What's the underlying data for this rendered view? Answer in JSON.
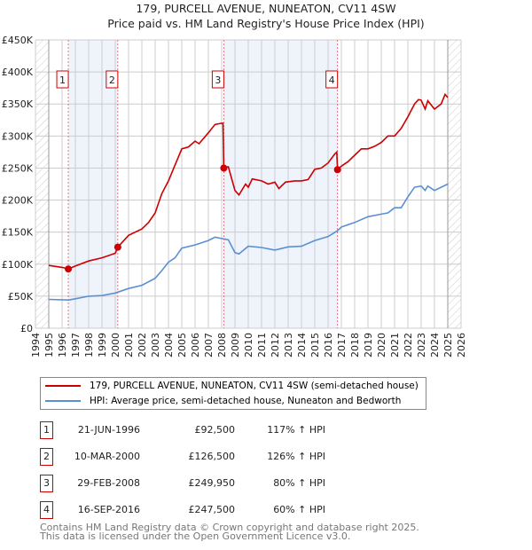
{
  "chart_data": {
    "type": "line",
    "title": "179, PURCELL AVENUE, NUNEATON, CV11 4SW",
    "subtitle": "Price paid vs. HM Land Registry's House Price Index (HPI)",
    "xlim": [
      1994,
      2026
    ],
    "ylim": [
      0,
      450000
    ],
    "x_ticks": [
      "1994",
      "1995",
      "1996",
      "1997",
      "1998",
      "1999",
      "2000",
      "2001",
      "2002",
      "2003",
      "2004",
      "2005",
      "2006",
      "2007",
      "2008",
      "2009",
      "2010",
      "2011",
      "2012",
      "2013",
      "2014",
      "2015",
      "2016",
      "2017",
      "2018",
      "2019",
      "2020",
      "2021",
      "2022",
      "2023",
      "2024",
      "2025",
      "2026"
    ],
    "y_ticks": [
      {
        "v": 0,
        "label": "£0"
      },
      {
        "v": 50000,
        "label": "£50K"
      },
      {
        "v": 100000,
        "label": "£100K"
      },
      {
        "v": 150000,
        "label": "£150K"
      },
      {
        "v": 200000,
        "label": "£200K"
      },
      {
        "v": 250000,
        "label": "£250K"
      },
      {
        "v": 300000,
        "label": "£300K"
      },
      {
        "v": 350000,
        "label": "£350K"
      },
      {
        "v": 400000,
        "label": "£400K"
      },
      {
        "v": 450000,
        "label": "£450K"
      }
    ],
    "grid": true,
    "series": [
      {
        "name": "179, PURCELL AVENUE, NUNEATON, CV11 4SW (semi-detached house)",
        "color": "#cc0000",
        "x": [
          1995,
          1996,
          1996.47,
          1997,
          1998,
          1999,
          2000,
          2000.19,
          2001,
          2002,
          2002.5,
          2003,
          2003.5,
          2004,
          2004.5,
          2005,
          2005.5,
          2006,
          2006.3,
          2007,
          2007.5,
          2008,
          2008.1,
          2008.16,
          2008.5,
          2009,
          2009.3,
          2009.8,
          2010,
          2010.3,
          2011,
          2011.5,
          2012,
          2012.3,
          2012.8,
          2013.5,
          2014,
          2014.5,
          2015,
          2015.5,
          2016,
          2016.5,
          2016.65,
          2016.71,
          2017,
          2017.5,
          2018,
          2018.5,
          2019,
          2019.5,
          2020,
          2020.5,
          2021,
          2021.5,
          2022,
          2022.5,
          2022.8,
          2023,
          2023.3,
          2023.5,
          2024,
          2024.5,
          2024.8,
          2025
        ],
        "y": [
          98000,
          95000,
          92500,
          97000,
          105000,
          110000,
          117000,
          126500,
          145000,
          155000,
          165000,
          180000,
          210000,
          230000,
          255000,
          280000,
          283000,
          292000,
          288000,
          305000,
          318000,
          320000,
          320000,
          250000,
          252000,
          215000,
          208000,
          225000,
          220000,
          233000,
          230000,
          225000,
          228000,
          218000,
          228000,
          230000,
          230000,
          232000,
          248000,
          250000,
          258000,
          272000,
          275000,
          247500,
          253000,
          260000,
          270000,
          280000,
          280000,
          284000,
          290000,
          300000,
          300000,
          312000,
          330000,
          350000,
          357000,
          356000,
          342000,
          355000,
          342000,
          350000,
          365000,
          360000
        ]
      },
      {
        "name": "HPI: Average price, semi-detached house, Nuneaton and Bedworth",
        "color": "#5b8fd4",
        "x": [
          1995,
          1996.5,
          1997,
          1998,
          1999,
          2000,
          2001,
          2002,
          2003,
          2003.5,
          2004,
          2004.5,
          2005,
          2006,
          2007,
          2007.5,
          2008,
          2008.5,
          2009,
          2009.3,
          2010,
          2011,
          2012,
          2013,
          2014,
          2015,
          2016,
          2016.7,
          2017,
          2018,
          2019,
          2020,
          2020.5,
          2021,
          2021.5,
          2022,
          2022.5,
          2023,
          2023.3,
          2023.5,
          2024,
          2024.5,
          2025
        ],
        "y": [
          45000,
          44000,
          46000,
          50000,
          51000,
          55000,
          62000,
          67000,
          78000,
          90000,
          103000,
          110000,
          125000,
          130000,
          137000,
          142000,
          140000,
          138000,
          118000,
          116000,
          128000,
          126000,
          122000,
          127000,
          128000,
          137000,
          143000,
          152000,
          158000,
          165000,
          174000,
          178000,
          180000,
          188000,
          188000,
          205000,
          220000,
          222000,
          215000,
          222000,
          215000,
          220000,
          225000
        ]
      }
    ],
    "sales": [
      {
        "n": "1",
        "x": 1996.47,
        "date": "21-JUN-1996",
        "price": 92500,
        "price_label": "£92,500",
        "hpi": "117% ↑ HPI"
      },
      {
        "n": "2",
        "x": 2000.19,
        "date": "10-MAR-2000",
        "price": 126500,
        "price_label": "£126,500",
        "hpi": "126% ↑ HPI"
      },
      {
        "n": "3",
        "x": 2008.16,
        "date": "29-FEB-2008",
        "price": 249950,
        "price_label": "£249,950",
        "hpi": "80% ↑ HPI"
      },
      {
        "n": "4",
        "x": 2016.71,
        "date": "16-SEP-2016",
        "price": 247500,
        "price_label": "£247,500",
        "hpi": "60% ↑ HPI"
      }
    ],
    "legend_position": "bottom"
  },
  "footer": {
    "line1": "Contains HM Land Registry data © Crown copyright and database right 2025.",
    "line2": "This data is licensed under the Open Government Licence v3.0."
  }
}
